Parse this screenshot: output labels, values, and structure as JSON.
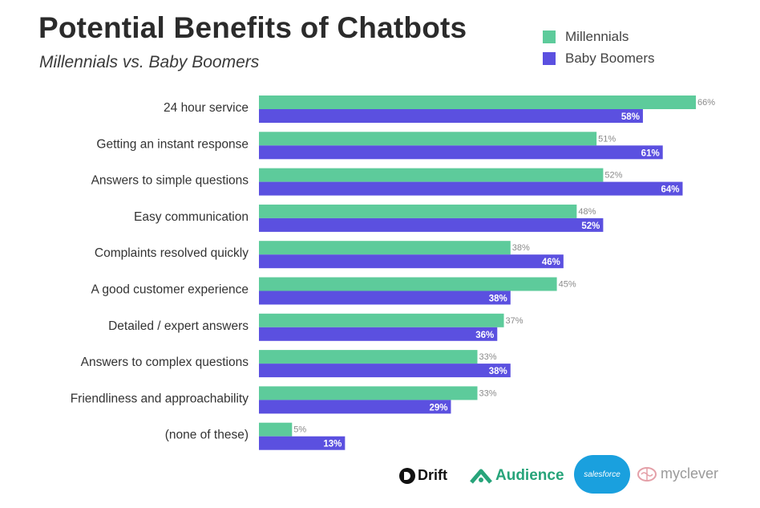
{
  "header": {
    "title": "Potential Benefits of Chatbots",
    "subtitle": "Millennials vs. Baby Boomers"
  },
  "colors": {
    "millennials": "#5dcb9b",
    "baby_boomers": "#5b50e0"
  },
  "chart_data": {
    "type": "bar",
    "orientation": "horizontal",
    "title": "Potential Benefits of Chatbots",
    "subtitle": "Millennials vs. Baby Boomers",
    "categories": [
      "24 hour service",
      "Getting an instant response",
      "Answers to simple questions",
      "Easy communication",
      "Complaints resolved quickly",
      "A good customer experience",
      "Detailed / expert answers",
      "Answers to complex questions",
      "Friendliness and approachability",
      "(none of these)"
    ],
    "series": [
      {
        "name": "Millennials",
        "values": [
          66,
          51,
          52,
          48,
          38,
          45,
          37,
          33,
          33,
          5
        ]
      },
      {
        "name": "Baby Boomers",
        "values": [
          58,
          61,
          64,
          52,
          46,
          38,
          36,
          38,
          29,
          13
        ]
      }
    ],
    "value_suffix": "%",
    "xlim": [
      0,
      66
    ],
    "grid": false,
    "legend_position": "top-right"
  },
  "logos": {
    "drift": "Drift",
    "audience": "Audience",
    "salesforce": "salesforce",
    "myclever": "myclever"
  }
}
